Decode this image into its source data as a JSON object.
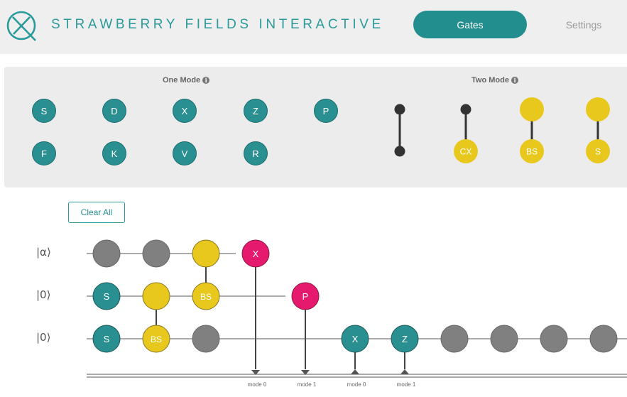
{
  "header": {
    "brand": "STRAWBERRY FIELDS INTERACTIVE",
    "tabs": [
      {
        "label": "Gates",
        "active": true
      },
      {
        "label": "Settings",
        "active": false
      }
    ]
  },
  "palette": {
    "one_mode_title": "One Mode",
    "two_mode_title": "Two Mode",
    "one_mode_gates": [
      "S",
      "D",
      "X",
      "Z",
      "P",
      "F",
      "K",
      "V",
      "R"
    ],
    "two_mode_gates": [
      "",
      "CX",
      "BS",
      "S"
    ]
  },
  "controls": {
    "clear_all": "Clear All"
  },
  "circuit": {
    "modes": [
      "|α⟩",
      "|0⟩",
      "|0⟩"
    ],
    "gate_labels": {
      "x_pink": "X",
      "p_pink": "P",
      "bs_top": "BS",
      "s_mode1": "S",
      "s_mode2": "S",
      "bs_bottom": "BS",
      "x_mode2": "X",
      "z_mode2": "Z"
    },
    "measure_labels": [
      "mode 0",
      "mode 1",
      "mode 0",
      "mode 1"
    ]
  },
  "colors": {
    "teal": "#2a8f90",
    "yellow": "#e9c81e",
    "gray": "#808080",
    "pink": "#e5196e"
  }
}
